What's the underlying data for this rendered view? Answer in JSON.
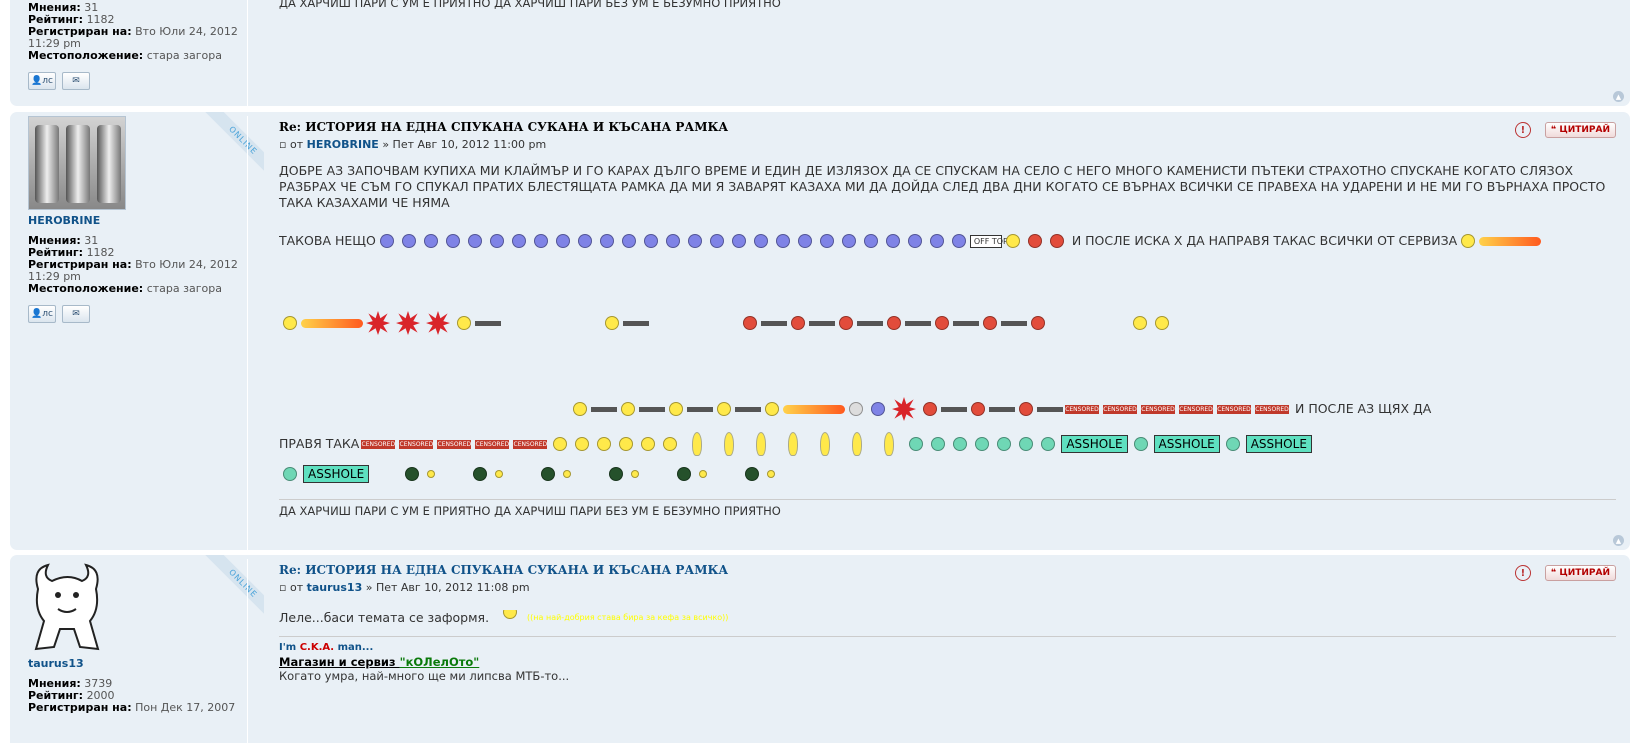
{
  "prev_post": {
    "stats": [
      {
        "label": "Мнения:",
        "value": "31"
      },
      {
        "label": "Рейтинг:",
        "value": "1182"
      },
      {
        "label": "Регистриран на:",
        "value": "Вто Юли 24, 2012 11:29 pm"
      },
      {
        "label": "Местоположение:",
        "value": "стара загора"
      }
    ],
    "signature": "ДА ХАРЧИШ ПАРИ С УМ Е ПРИЯТНО ДА ХАРЧИШ ПАРИ БЕЗ УМ Е БЕЗУМНО ПРИЯТНО"
  },
  "post1": {
    "online_label": "ONLINE",
    "username": "HEROBRINE",
    "stats": [
      {
        "label": "Мнения:",
        "value": "31"
      },
      {
        "label": "Рейтинг:",
        "value": "1182"
      },
      {
        "label": "Регистриран на:",
        "value": "Вто Юли 24, 2012 11:29 pm"
      },
      {
        "label": "Местоположение:",
        "value": "стара загора"
      }
    ],
    "pm_label": "лс",
    "title": "Re: ИСТОРИЯ НА ЕДНА СПУКАНА СУКАНА И КЪСАНА РАМКА",
    "author_prefix": "от",
    "author": "HEROBRINE",
    "date": "» Пет Авг 10, 2012 11:00 pm",
    "text1": "ДОБРЕ АЗ ЗАПОЧВАМ КУПИХА МИ КЛАЙМЪР И ГО КАРАХ ДЪЛГО ВРЕМЕ И ЕДИН ДЕ ИЗЛЯЗОХ ДА СЕ СПУСКАМ НА СЕЛО С НЕГО МНОГО КАМЕНИСТИ ПЪТЕКИ СТРАХОТНО СПУСКАНЕ КОГАТО СЛЯЗОХ РАЗБРАХ ЧЕ СЪМ ГО СПУКАЛ ПРАТИХ БЛЕСТЯЩАТА РАМКА ДА МИ Я ЗАВАРЯТ КАЗАХА МИ ДА ДОЙДА СЛЕД ДВА ДНИ КОГАТО СЕ ВЪРНАХ ВСИЧКИ СЕ ПРАВЕХА НА УДАРЕНИ И НЕ МИ ГО ВЪРНАХА ПРОСТО ТАКА КАЗАХАМИ ЧЕ НЯМА",
    "text2": "ТАКОВА НЕЩО",
    "offtopic": "OFF TOPIC!",
    "text3": "И ПОСЛЕ ИСКА Х ДА НАПРАВЯ ТАКАС ВСИЧКИ ОТ СЕРВИЗА",
    "text4": "И ПОСЛЕ АЗ ЩЯХ ДА",
    "text5": "ПРАВЯ ТАКА",
    "censored": "CENSORED",
    "asshole": "ASSHOLE",
    "signature": "ДА ХАРЧИШ ПАРИ С УМ Е ПРИЯТНО ДА ХАРЧИШ ПАРИ БЕЗ УМ Е БЕЗУМНО ПРИЯТНО",
    "report_icon": "!",
    "quote_label": "ЦИТИРАЙ"
  },
  "post2": {
    "online_label": "ONLINE",
    "username": "taurus13",
    "stats": [
      {
        "label": "Мнения:",
        "value": "3739"
      },
      {
        "label": "Рейтинг:",
        "value": "2000"
      },
      {
        "label": "Регистриран на:",
        "value": "Пон Дек 17, 2007"
      }
    ],
    "title": "Re: ИСТОРИЯ НА ЕДНА СПУКАНА СУКАНА И КЪСАНА РАМКА",
    "author_prefix": "от",
    "author": "taurus13",
    "date": "» Пет Авг 10, 2012 11:08 pm",
    "text": "Леле...баси темата се заформя.",
    "yellow_note": "(на най-добрия става бира за кефа за всичко)",
    "sig_line1_prefix": "I'm ",
    "sig_cka": "C.K.A.",
    "sig_line1_suffix": " man...",
    "sig_shop": "Магазин и сервиз ",
    "sig_shop_name": "\"кОЛелОто\"",
    "sig_line3": "Когато умра, най-много ще ми липсва МТБ-то...",
    "report_icon": "!",
    "quote_label": "ЦИТИРАЙ"
  },
  "icons": {
    "pm": "pm-icon",
    "email": "email-icon",
    "report": "report-icon",
    "quote": "quote-icon",
    "top": "back-to-top-icon"
  }
}
